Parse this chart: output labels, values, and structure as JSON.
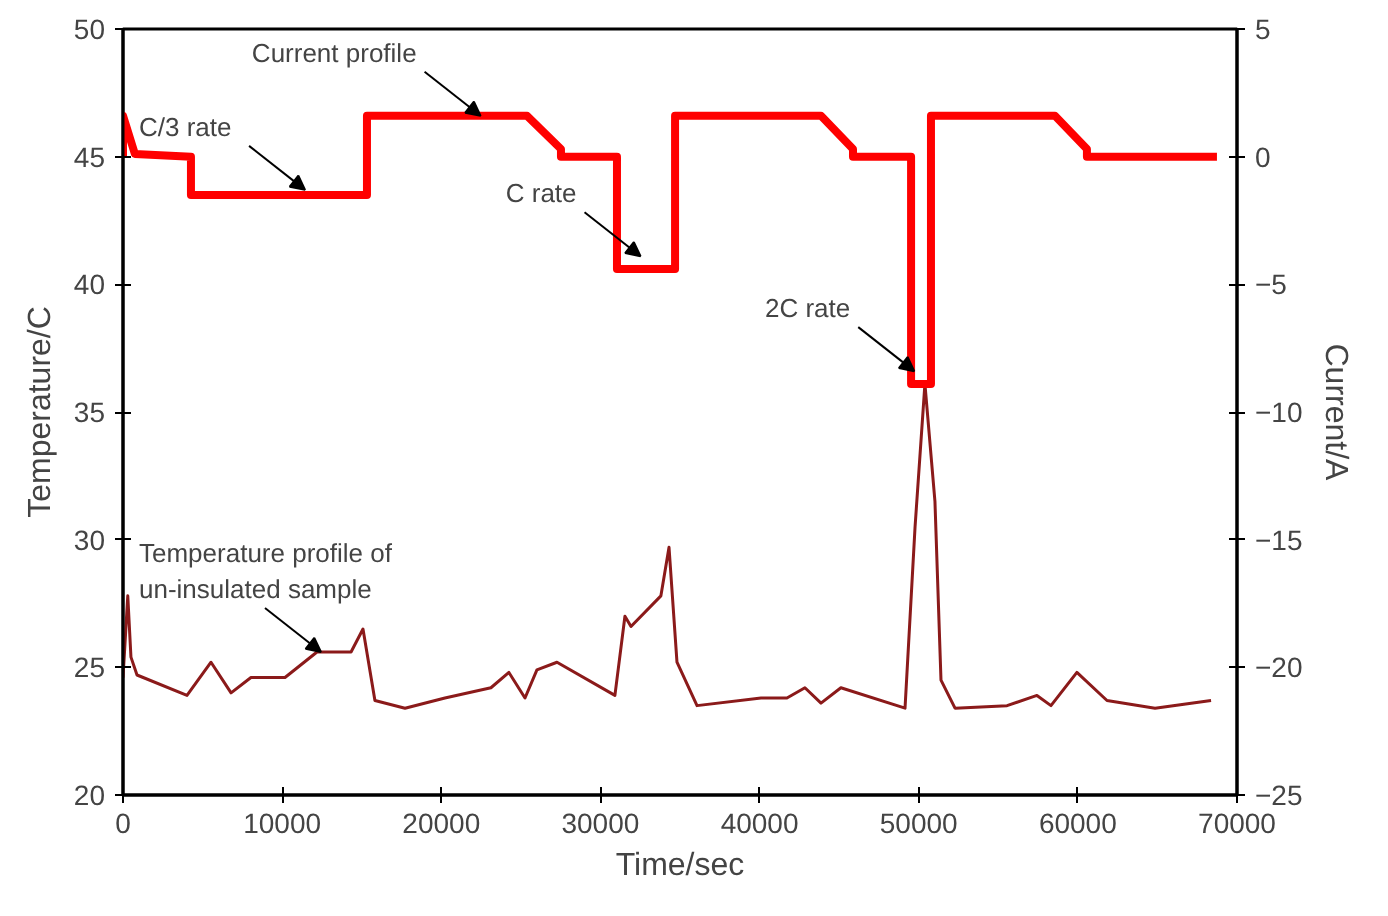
{
  "chart_data": {
    "type": "line",
    "xlabel": "Time/sec",
    "ylabel": "Temperature/C",
    "y2label": "Current/A",
    "xlim": [
      0,
      70000
    ],
    "xticks": [
      0,
      10000,
      20000,
      30000,
      40000,
      50000,
      60000,
      70000
    ],
    "ylim": [
      20,
      50
    ],
    "yticks": [
      20,
      25,
      30,
      35,
      40,
      45,
      50
    ],
    "y2lim": [
      -25,
      5
    ],
    "y2ticks": [
      -25,
      -20,
      -15,
      -10,
      -5,
      0,
      5
    ],
    "grid": false,
    "marker": "none",
    "line_style": "solid",
    "series": [
      {
        "color": "#8b1a1a",
        "x": [
          0,
          300,
          500,
          880,
          4020,
          5530,
          6790,
          8040,
          10180,
          12190,
          14330,
          15080,
          15830,
          17720,
          20230,
          23120,
          24250,
          25260,
          26010,
          27270,
          30910,
          31540,
          31920,
          33800,
          34310,
          34810,
          36070,
          40090,
          41720,
          42850,
          43860,
          45110,
          49140,
          49770,
          50390,
          51020,
          51400,
          52280,
          55550,
          57430,
          58310,
          59940,
          61830,
          64850,
          68370
        ],
        "values": [
          24.6,
          27.8,
          25.4,
          24.7,
          23.9,
          25.2,
          24.0,
          24.6,
          24.6,
          25.6,
          25.6,
          26.5,
          23.7,
          23.4,
          23.8,
          24.2,
          24.8,
          23.8,
          24.9,
          25.2,
          23.9,
          27.0,
          26.6,
          27.8,
          29.7,
          25.2,
          23.5,
          23.8,
          23.8,
          24.2,
          23.6,
          24.2,
          23.4,
          30.5,
          36.1,
          31.5,
          24.5,
          23.4,
          23.5,
          23.9,
          23.5,
          24.8,
          23.7,
          23.4,
          23.7
        ]
      },
      {
        "color": "#ff0000",
        "axis": "y2",
        "x": [
          0,
          0,
          750,
          4270,
          4270,
          15330,
          15330,
          25390,
          27520,
          27520,
          31040,
          31040,
          34690,
          34690,
          43860,
          45870,
          45870,
          49520,
          49520,
          50770,
          50770,
          50770,
          58560,
          60570,
          60570,
          68740
        ],
        "values": [
          0,
          1.6,
          0.1,
          0,
          -1.5,
          -1.5,
          1.6,
          1.6,
          0.3,
          0,
          0,
          -4.4,
          -4.4,
          1.6,
          1.6,
          0.3,
          0,
          0,
          -8.9,
          -8.9,
          -6.8,
          1.6,
          1.6,
          0.3,
          0,
          0
        ]
      }
    ],
    "annotations": [
      {
        "text": "Current profile",
        "x": 22470,
        "y": 46.6
      },
      {
        "text": "C/3 rate",
        "x": 11440,
        "y": 43.7
      },
      {
        "text": "C rate",
        "x": 32520,
        "y": 41.1
      },
      {
        "text": "2C rate",
        "x": 49720,
        "y": 36.6
      },
      {
        "text": "Temperature profile of\nun-insulated sample",
        "x": 12440,
        "y": 25.6
      }
    ]
  }
}
